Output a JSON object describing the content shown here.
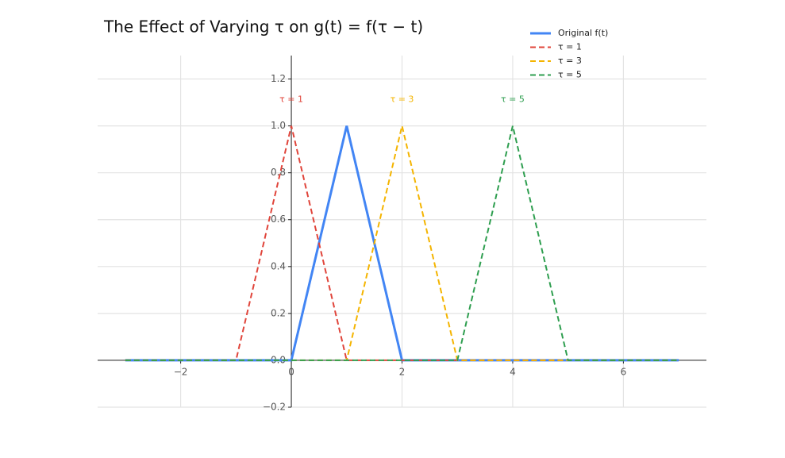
{
  "chart_data": {
    "type": "line",
    "title": "The Effect of Varying τ on g(t) = f(τ − t)",
    "x": [
      -3,
      -1,
      0,
      1,
      2,
      3,
      4,
      5,
      7
    ],
    "series": [
      {
        "name": "Original f(t)",
        "color": "#4285f4",
        "dashed": false,
        "values": [
          0,
          0,
          0,
          1,
          0,
          0,
          0,
          0,
          0
        ]
      },
      {
        "name": "τ = 1",
        "color": "#e0443a",
        "dashed": true,
        "values": [
          0,
          0,
          1,
          0,
          0,
          0,
          0,
          0,
          0
        ]
      },
      {
        "name": "τ = 3",
        "color": "#f4b400",
        "dashed": true,
        "values": [
          0,
          0,
          0,
          0,
          1,
          0,
          0,
          0,
          0
        ]
      },
      {
        "name": "τ = 5",
        "color": "#2e9e4f",
        "dashed": true,
        "values": [
          0,
          0,
          0,
          0,
          0,
          0,
          1,
          0,
          0
        ]
      }
    ],
    "xlim": [
      -3.5,
      7.5
    ],
    "ylim": [
      -0.2,
      1.3
    ],
    "xticks": [
      {
        "value": -2,
        "label": "−2"
      },
      0,
      2,
      4,
      6
    ],
    "yticks": [
      {
        "value": -0.2,
        "label": "−0.2"
      },
      {
        "value": 0,
        "label": "0.0"
      },
      0.2,
      0.4,
      0.6,
      0.8,
      {
        "value": 1,
        "label": "1.0"
      },
      1.2
    ],
    "grid": true,
    "legend": "upper right"
  }
}
